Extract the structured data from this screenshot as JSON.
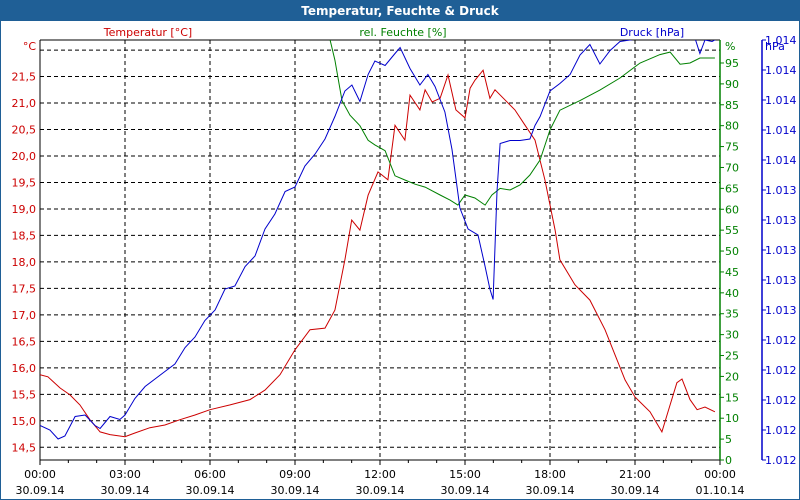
{
  "window": {
    "title": "Temperatur, Feuchte & Druck"
  },
  "chart_data": {
    "type": "line",
    "title": "Temperatur, Feuchte & Druck",
    "grid": true,
    "x_axis": {
      "range_hours": [
        0,
        24
      ],
      "ticks": [
        {
          "time": "00:00",
          "date": "30.09.14"
        },
        {
          "time": "03:00",
          "date": "30.09.14"
        },
        {
          "time": "06:00",
          "date": "30.09.14"
        },
        {
          "time": "09:00",
          "date": "30.09.14"
        },
        {
          "time": "12:00",
          "date": "30.09.14"
        },
        {
          "time": "15:00",
          "date": "30.09.14"
        },
        {
          "time": "18:00",
          "date": "30.09.14"
        },
        {
          "time": "21:00",
          "date": "30.09.14"
        },
        {
          "time": "00:00",
          "date": "01.10.14"
        }
      ]
    },
    "axes": {
      "temperature": {
        "label": "Temperatur [°C]",
        "unit": "°C",
        "range": [
          14.26,
          22.19
        ],
        "ticks": [
          "21,5",
          "21,0",
          "20,5",
          "20,0",
          "19,5",
          "19,0",
          "18,5",
          "18,0",
          "17,5",
          "17,0",
          "16,5",
          "16,0",
          "15,5",
          "15,0",
          "14,5"
        ],
        "tick_values": [
          21.5,
          21,
          20.5,
          20,
          19.5,
          19,
          18.5,
          18,
          17.5,
          17,
          16.5,
          16,
          15.5,
          15,
          14.5
        ],
        "color": "#cc0000"
      },
      "humidity": {
        "label": "rel. Feuchte [%]",
        "unit": "%",
        "range": [
          0,
          100.5
        ],
        "ticks": [
          "95",
          "90",
          "85",
          "80",
          "75",
          "70",
          "65",
          "60",
          "55",
          "50",
          "45",
          "40",
          "35",
          "30",
          "25",
          "20",
          "15",
          "10",
          "5",
          "0"
        ],
        "tick_values": [
          95,
          90,
          85,
          80,
          75,
          70,
          65,
          60,
          55,
          50,
          45,
          40,
          35,
          30,
          25,
          20,
          15,
          10,
          5,
          0
        ],
        "color": "#008000"
      },
      "pressure": {
        "label": "Druck [hPa]",
        "unit": "hPa",
        "range": [
          1011.6,
          1014.4
        ],
        "ticks": [
          "1.014",
          "1.014",
          "1.014",
          "1.014",
          "1.014",
          "1.013",
          "1.013",
          "1.013",
          "1.013",
          "1.013",
          "1.012",
          "1.012",
          "1.012",
          "1.012",
          "1.012"
        ],
        "tick_values": [
          1014.4,
          1014.2,
          1014.0,
          1013.8,
          1013.6,
          1013.4,
          1013.2,
          1013.0,
          1012.8,
          1012.6,
          1012.4,
          1012.2,
          1012.0,
          1011.8,
          1011.6
        ],
        "color": "#0000cc"
      }
    },
    "series": [
      {
        "name": "Temperatur [°C]",
        "axis": "temperature",
        "color": "#cc0000",
        "x": [
          0,
          0.28,
          0.71,
          1.06,
          1.41,
          1.76,
          2.12,
          2.47,
          3.0,
          3.35,
          3.88,
          4.41,
          4.94,
          5.47,
          6.0,
          6.71,
          7.41,
          7.94,
          8.47,
          9.0,
          9.53,
          10.06,
          10.41,
          10.76,
          11.0,
          11.29,
          11.58,
          11.93,
          12.28,
          12.53,
          12.88,
          13.06,
          13.41,
          13.59,
          13.84,
          14.12,
          14.4,
          14.68,
          15.0,
          15.18,
          15.35,
          15.64,
          15.88,
          16.06,
          16.41,
          16.76,
          17.12,
          17.47,
          17.82,
          18.18,
          18.35,
          18.88,
          19.41,
          19.94,
          20.29,
          20.65,
          21.0,
          21.53,
          21.95,
          22.24,
          22.48,
          22.66,
          22.94,
          23.19,
          23.47,
          23.82
        ],
        "y": [
          15.87,
          15.83,
          15.62,
          15.49,
          15.3,
          15.02,
          14.79,
          14.74,
          14.7,
          14.77,
          14.87,
          14.92,
          15.02,
          15.11,
          15.21,
          15.3,
          15.4,
          15.58,
          15.87,
          16.34,
          16.72,
          16.75,
          17.09,
          18.04,
          18.79,
          18.6,
          19.26,
          19.7,
          19.55,
          20.58,
          20.3,
          21.15,
          20.87,
          21.25,
          21.02,
          21.09,
          21.53,
          20.87,
          20.72,
          21.28,
          21.43,
          21.62,
          21.09,
          21.25,
          21.06,
          20.87,
          20.58,
          20.3,
          19.55,
          18.6,
          18.04,
          17.57,
          17.28,
          16.72,
          16.25,
          15.77,
          15.45,
          15.17,
          14.79,
          15.3,
          15.72,
          15.79,
          15.4,
          15.21,
          15.26,
          15.17
        ]
      },
      {
        "name": "rel. Feuchte [%]",
        "axis": "humidity",
        "color": "#008000",
        "x": [
          10.24,
          10.41,
          10.66,
          10.94,
          11.29,
          11.58,
          11.82,
          12.18,
          12.53,
          12.88,
          13.24,
          13.59,
          14.12,
          14.47,
          14.75,
          15.0,
          15.35,
          15.71,
          15.95,
          16.24,
          16.59,
          16.94,
          17.29,
          17.65,
          18.0,
          18.35,
          19.06,
          19.76,
          20.47,
          21.18,
          21.88,
          22.24,
          22.59,
          22.94,
          23.29,
          23.82
        ],
        "y": [
          100.5,
          95.7,
          86,
          82.5,
          80,
          76.5,
          75.4,
          74,
          68,
          67,
          66,
          65.3,
          63.4,
          62.2,
          61,
          63.4,
          62.7,
          61,
          63.4,
          65,
          64.6,
          65.8,
          68.2,
          71.8,
          79,
          83.7,
          86,
          88.5,
          91.4,
          95,
          97,
          97.6,
          94.7,
          95,
          96.2,
          96.2
        ]
      },
      {
        "name": "Druck [hPa]",
        "axis": "pressure",
        "color": "#0000cc",
        "x": [
          0,
          0.35,
          0.64,
          0.88,
          1.24,
          1.59,
          1.94,
          2.12,
          2.47,
          2.82,
          3.0,
          3.35,
          3.71,
          4.06,
          4.41,
          4.76,
          5.12,
          5.47,
          5.82,
          6.18,
          6.53,
          6.88,
          7.24,
          7.59,
          7.94,
          8.29,
          8.65,
          9.0,
          9.35,
          9.71,
          10.06,
          10.41,
          10.76,
          11.01,
          11.29,
          11.58,
          11.82,
          12.18,
          12.53,
          12.71,
          13.06,
          13.41,
          13.69,
          13.94,
          14.29,
          14.54,
          14.82,
          15.11,
          15.46,
          15.71,
          15.88,
          15.99,
          16.13,
          16.24,
          16.59,
          16.94,
          17.29,
          17.47,
          17.65,
          18.0,
          18.35,
          18.71,
          19.06,
          19.41,
          19.76,
          20.12,
          20.47,
          20.82,
          21.18,
          21.88,
          22.24,
          22.59,
          23.12,
          23.29,
          23.47,
          23.72,
          24.0
        ],
        "y": [
          1011.83,
          1011.8,
          1011.74,
          1011.76,
          1011.89,
          1011.9,
          1011.83,
          1011.81,
          1011.89,
          1011.87,
          1011.9,
          1012.01,
          1012.09,
          1012.14,
          1012.19,
          1012.24,
          1012.35,
          1012.42,
          1012.53,
          1012.6,
          1012.74,
          1012.76,
          1012.89,
          1012.96,
          1013.14,
          1013.24,
          1013.39,
          1013.42,
          1013.56,
          1013.64,
          1013.74,
          1013.89,
          1014.06,
          1014.1,
          1013.99,
          1014.17,
          1014.26,
          1014.23,
          1014.31,
          1014.35,
          1014.21,
          1014.1,
          1014.17,
          1014.09,
          1013.92,
          1013.67,
          1013.28,
          1013.14,
          1013.1,
          1012.89,
          1012.74,
          1012.67,
          1013.39,
          1013.71,
          1013.73,
          1013.73,
          1013.74,
          1013.83,
          1013.89,
          1014.06,
          1014.11,
          1014.17,
          1014.3,
          1014.37,
          1014.24,
          1014.33,
          1014.39,
          1014.4,
          1014.41,
          1014.41,
          1014.46,
          1014.41,
          1014.41,
          1014.31,
          1014.4,
          1014.39,
          1014.42
        ]
      }
    ]
  }
}
